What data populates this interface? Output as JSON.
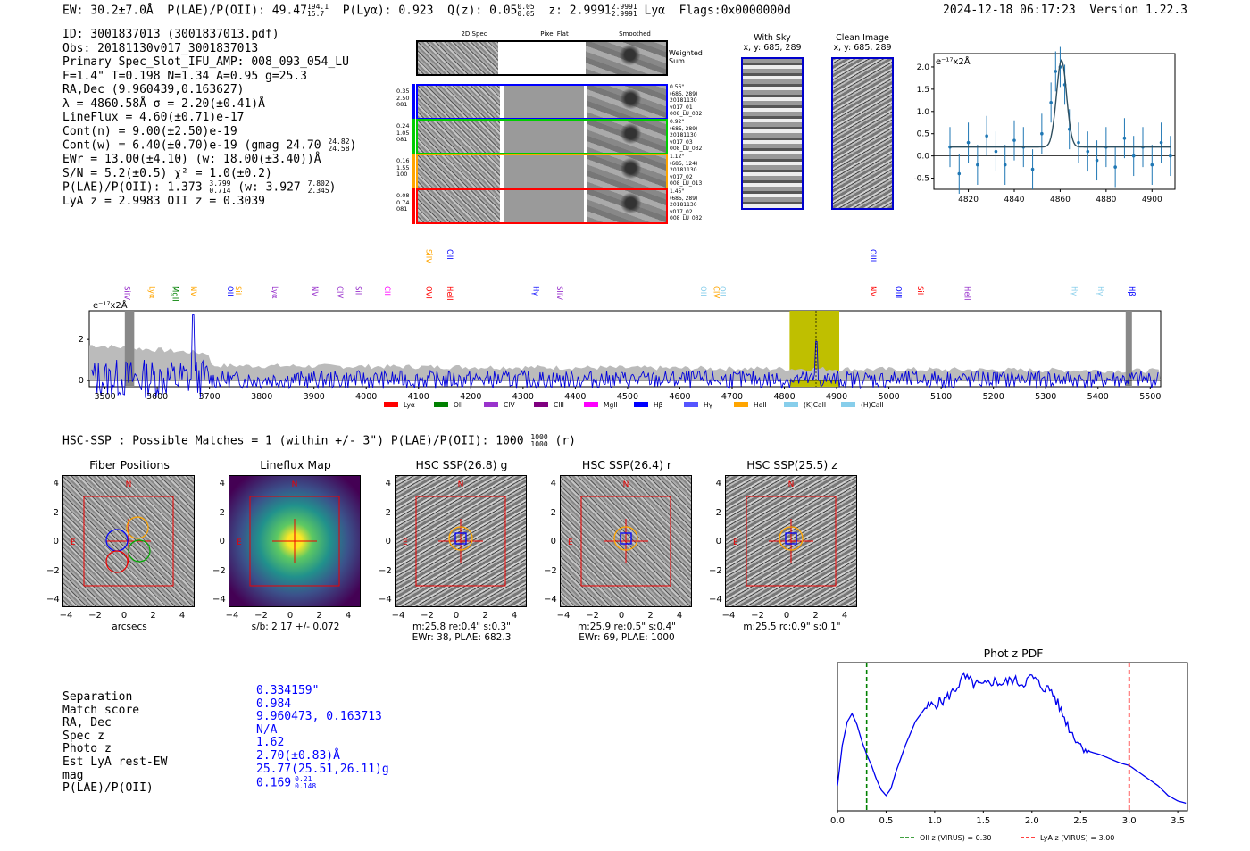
{
  "header": {
    "ew": "EW: 30.2±7.0Å",
    "plae_main": "P(LAE)/P(OII): 49.47",
    "plae_sup": "194.1",
    "plae_sub": "15.7",
    "plya": "P(Lyα): 0.923",
    "qz_main": "Q(z): 0.05",
    "qz_sup": "0.05",
    "qz_sub": "0.05",
    "z_main": "z: 2.9991",
    "z_sup": "2.9991",
    "z_sub": "2.9991",
    "z_line": "Lyα",
    "flags": "Flags:0x0000000d",
    "datetime": "2024-12-18 06:17:23",
    "version": "Version 1.22.3"
  },
  "info": {
    "id": "ID: 3001837013 (3001837013.pdf)",
    "obs": "Obs: 20181130v017_3001837013",
    "primary": "Primary Spec_Slot_IFU_AMP: 008_093_054_LU",
    "fparams": "F=1.4\"  T=0.198  N=1.34  A=0.95  g=25.3",
    "radec": "RA,Dec (9.960439,0.163627)",
    "lambda": "λ = 4860.58Å   σ = 2.20(±0.41)Å",
    "lineflux": "LineFlux = 4.60(±0.71)e-17",
    "contn": "Cont(n) = 9.00(±2.50)e-19",
    "contw": "Cont(w) = 6.40(±0.70)e-19 (gmag 24.70",
    "contw_sup": "24.82",
    "contw_sub": "24.58",
    "contw_end": ")",
    "ewr": "EWr = 13.00(±4.10) (w: 18.00(±3.40))Å",
    "sn": "S/N = 5.2(±0.5)  χ² = 1.0(±0.2)",
    "plae": "P(LAE)/P(OII): 1.373",
    "plae_sup": "3.799",
    "plae_sub": "0.714",
    "plae_w": "(w: 3.927",
    "plae_w_sup": "7.802",
    "plae_w_sub": "2.345",
    "plae_end": ")",
    "zline": "LyA z = 2.9983   OII z = 0.3039"
  },
  "spec2d": {
    "col_2d": "2D Spec",
    "col_flat": "Pixel Flat",
    "col_smooth": "Smoothed",
    "weighted": "Weighted Sum",
    "rows": [
      {
        "left": [
          "0.35",
          "2.50",
          "081"
        ],
        "right": [
          "0.56\"",
          "(685, 289)",
          "20181130",
          "v017_01",
          "008_LU_032"
        ],
        "color": "#0000ff"
      },
      {
        "left": [
          "0.24",
          "1.05",
          "081"
        ],
        "right": [
          "0.92\"",
          "(685, 289)",
          "20181130",
          "v017_03",
          "008_LU_032"
        ],
        "color": "#00cc00"
      },
      {
        "left": [
          "0.16",
          "1.55",
          "100"
        ],
        "right": [
          "1.12\"",
          "(685, 124)",
          "20181130",
          "v017_02",
          "008_LU_013"
        ],
        "color": "#ffa500"
      },
      {
        "left": [
          "0.08",
          "0.74",
          "081"
        ],
        "right": [
          "1.45\"",
          "(685, 289)",
          "20181130",
          "v017_02",
          "008_LU_032"
        ],
        "color": "#ff0000"
      }
    ]
  },
  "cutouts": {
    "with_sky": "With Sky",
    "with_sky_xy": "x, y: 685, 289",
    "clean": "Clean Image",
    "clean_xy": "x, y: 685, 289"
  },
  "line_fit": {
    "unit": "e⁻¹⁷x2Å",
    "xticks": [
      "4820",
      "4840",
      "4860",
      "4880",
      "4900"
    ],
    "yticks": [
      "2.0",
      "1.5",
      "1.0",
      "0.5",
      "0.0",
      "-0.5"
    ]
  },
  "chart_data": [
    {
      "type": "scatter",
      "name": "line-fit",
      "unit": "e-17 x2Å",
      "xlim": [
        4805,
        4910
      ],
      "ylim": [
        -0.75,
        2.3
      ],
      "x": [
        4812,
        4816,
        4820,
        4824,
        4828,
        4832,
        4836,
        4840,
        4844,
        4848,
        4852,
        4856,
        4858,
        4860,
        4862,
        4864,
        4868,
        4872,
        4876,
        4880,
        4884,
        4888,
        4892,
        4896,
        4900,
        4904,
        4908
      ],
      "y": [
        0.2,
        -0.4,
        0.3,
        -0.2,
        0.45,
        0.1,
        -0.2,
        0.35,
        0.2,
        -0.3,
        0.5,
        1.2,
        1.9,
        2.0,
        1.6,
        0.6,
        0.3,
        0.1,
        -0.1,
        0.2,
        -0.25,
        0.4,
        0.0,
        0.2,
        -0.2,
        0.3,
        0.0
      ],
      "fit_peak": 1.95,
      "fit_center": 4860.58,
      "fit_continuum": 0.2
    },
    {
      "type": "line",
      "name": "full-spectrum",
      "unit": "e-17 x2Å",
      "xlim": [
        3470,
        5520
      ],
      "ylim": [
        -0.3,
        3.4
      ],
      "xticks": [
        "3500",
        "3600",
        "3700",
        "3800",
        "3900",
        "4000",
        "4100",
        "4200",
        "4300",
        "4400",
        "4500",
        "4600",
        "4700",
        "4800",
        "4900",
        "5000",
        "5100",
        "5200",
        "5300",
        "5400",
        "5500"
      ],
      "yticks": [
        "2",
        "0"
      ],
      "highlight_band": [
        4810,
        4905
      ],
      "line_center": 4860.58,
      "masked_bands": [
        [
          3538,
          3556
        ],
        [
          5453,
          5465
        ]
      ],
      "line_markers": [
        {
          "label": "SiIV",
          "x": 3532,
          "color": "#9933cc",
          "row": 2
        },
        {
          "label": "Lyα",
          "x": 3580,
          "color": "#ffa500",
          "row": 2
        },
        {
          "label": "MgII",
          "x": 3625,
          "color": "#008000",
          "row": 2
        },
        {
          "label": "NV",
          "x": 3660,
          "color": "#ffa500",
          "row": 2
        },
        {
          "label": "OII",
          "x": 3730,
          "color": "#0000ff",
          "row": 2
        },
        {
          "label": "SiII",
          "x": 3745,
          "color": "#ffa500",
          "row": 2
        },
        {
          "label": "Lyα",
          "x": 3815,
          "color": "#9933cc",
          "row": 2
        },
        {
          "label": "NV",
          "x": 3892,
          "color": "#9933cc",
          "row": 2
        },
        {
          "label": "CIV",
          "x": 3940,
          "color": "#9933cc",
          "row": 2
        },
        {
          "label": "SiII",
          "x": 3975,
          "color": "#9933cc",
          "row": 2
        },
        {
          "label": "CII",
          "x": 4030,
          "color": "#ff00ff",
          "row": 2
        },
        {
          "label": "OVI",
          "x": 4110,
          "color": "#ff0000",
          "row": 2
        },
        {
          "label": "SiIV",
          "x": 4110,
          "color": "#ffa500",
          "row": 1
        },
        {
          "label": "OII",
          "x": 4150,
          "color": "#0000ff",
          "row": 1
        },
        {
          "label": "HeII",
          "x": 4150,
          "color": "#ff0000",
          "row": 2
        },
        {
          "label": "Hγ",
          "x": 4315,
          "color": "#0000ff",
          "row": 2
        },
        {
          "label": "SiIV",
          "x": 4360,
          "color": "#9933cc",
          "row": 2
        },
        {
          "label": "OII",
          "x": 4635,
          "color": "#87ceeb",
          "row": 2
        },
        {
          "label": "CIV",
          "x": 4660,
          "color": "#ffa500",
          "row": 2
        },
        {
          "label": "OII",
          "x": 4672,
          "color": "#87ceeb",
          "row": 2
        },
        {
          "label": "OIII",
          "x": 4960,
          "color": "#0000ff",
          "row": 1
        },
        {
          "label": "NV",
          "x": 4960,
          "color": "#ff0000",
          "row": 2
        },
        {
          "label": "OIII",
          "x": 5008,
          "color": "#0000ff",
          "row": 2
        },
        {
          "label": "SiII",
          "x": 5050,
          "color": "#ff0000",
          "row": 2
        },
        {
          "label": "HeII",
          "x": 5140,
          "color": "#9933cc",
          "row": 2
        },
        {
          "label": "Hγ",
          "x": 5345,
          "color": "#87ceeb",
          "row": 2
        },
        {
          "label": "Hγ",
          "x": 5395,
          "color": "#87ceeb",
          "row": 2
        },
        {
          "label": "Hβ",
          "x": 5455,
          "color": "#0000ff",
          "row": 2
        }
      ],
      "legend": [
        {
          "label": "Lyα",
          "color": "#ff0000"
        },
        {
          "label": "OII",
          "color": "#008000"
        },
        {
          "label": "CIV",
          "color": "#9933cc"
        },
        {
          "label": "CIII",
          "color": "#800080"
        },
        {
          "label": "MgII",
          "color": "#ff00ff"
        },
        {
          "label": "Hβ",
          "color": "#0000ff"
        },
        {
          "label": "Hγ",
          "color": "#5555ff"
        },
        {
          "label": "HeII",
          "color": "#ffa500"
        },
        {
          "label": "(K)CaII",
          "color": "#87ceeb"
        },
        {
          "label": "(H)CaII",
          "color": "#87ceeb"
        }
      ]
    },
    {
      "type": "line",
      "name": "phot-z-pdf",
      "title": "Phot z PDF",
      "xlim": [
        0.0,
        3.6
      ],
      "xticks": [
        "0.0",
        "0.5",
        "1.0",
        "1.5",
        "2.0",
        "2.5",
        "3.0",
        "3.5"
      ],
      "x": [
        0.0,
        0.05,
        0.1,
        0.15,
        0.2,
        0.25,
        0.3,
        0.35,
        0.4,
        0.45,
        0.5,
        0.55,
        0.6,
        0.7,
        0.8,
        0.9,
        1.0,
        1.1,
        1.2,
        1.3,
        1.4,
        1.5,
        1.6,
        1.7,
        1.8,
        1.9,
        2.0,
        2.1,
        2.2,
        2.3,
        2.4,
        2.5,
        2.6,
        2.7,
        2.8,
        2.9,
        3.0,
        3.1,
        3.2,
        3.3,
        3.4,
        3.5,
        3.6
      ],
      "y": [
        0.15,
        0.45,
        0.62,
        0.68,
        0.6,
        0.48,
        0.38,
        0.3,
        0.2,
        0.12,
        0.08,
        0.13,
        0.25,
        0.45,
        0.62,
        0.72,
        0.75,
        0.78,
        0.85,
        0.95,
        0.9,
        0.88,
        0.92,
        0.9,
        0.93,
        0.9,
        0.95,
        0.88,
        0.85,
        0.7,
        0.55,
        0.45,
        0.4,
        0.38,
        0.35,
        0.32,
        0.3,
        0.25,
        0.2,
        0.15,
        0.08,
        0.04,
        0.02
      ],
      "vlines": [
        {
          "x": 0.3,
          "color": "#008000",
          "label": "OII z (VIRUS) = 0.30"
        },
        {
          "x": 3.0,
          "color": "#ff0000",
          "label": "LyA z (VIRUS) = 3.00"
        }
      ]
    }
  ],
  "hsc": {
    "title": "HSC-SSP : Possible Matches = 1 (within +/- 3\")  P(LAE)/P(OII): 1000",
    "title_sup": "1000",
    "title_sub": "1000",
    "title_end": "(r)",
    "yticks": [
      "4",
      "2",
      "0",
      "−2",
      "−4"
    ],
    "xticks": [
      "−4",
      "−2",
      "0",
      "2",
      "4"
    ],
    "north": "N",
    "east": "E",
    "panels": [
      {
        "title": "Fiber Positions",
        "caption1": "arcsecs",
        "caption2": ""
      },
      {
        "title": "Lineflux Map",
        "caption1": "s/b: 2.17 +/- 0.072",
        "caption2": ""
      },
      {
        "title": "HSC SSP(26.8) g",
        "caption1": "m:25.8  re:0.4\"  s:0.3\"",
        "caption2": "EWr: 38, PLAE: 682.3"
      },
      {
        "title": "HSC SSP(26.4) r",
        "caption1": "m:25.9  re:0.5\"  s:0.4\"",
        "caption2": "EWr: 69, PLAE: 1000"
      },
      {
        "title": "HSC SSP(25.5) z",
        "caption1": "m:25.5 rc:0.9\"  s:0.1\"",
        "caption2": ""
      }
    ]
  },
  "match_table": {
    "labels": [
      "Separation",
      "Match score",
      "RA, Dec",
      "Spec z",
      "Photo z",
      "Est LyA rest-EW",
      "mag",
      "P(LAE)/P(OII)"
    ],
    "values": [
      "0.334159\"",
      "0.984",
      "9.960473, 0.163713",
      "N/A",
      "1.62",
      "2.70(±0.83)Å",
      "25.77(25.51,26.11)g",
      "0.169"
    ],
    "plae_sup": "0.21",
    "plae_sub": "0.148"
  }
}
